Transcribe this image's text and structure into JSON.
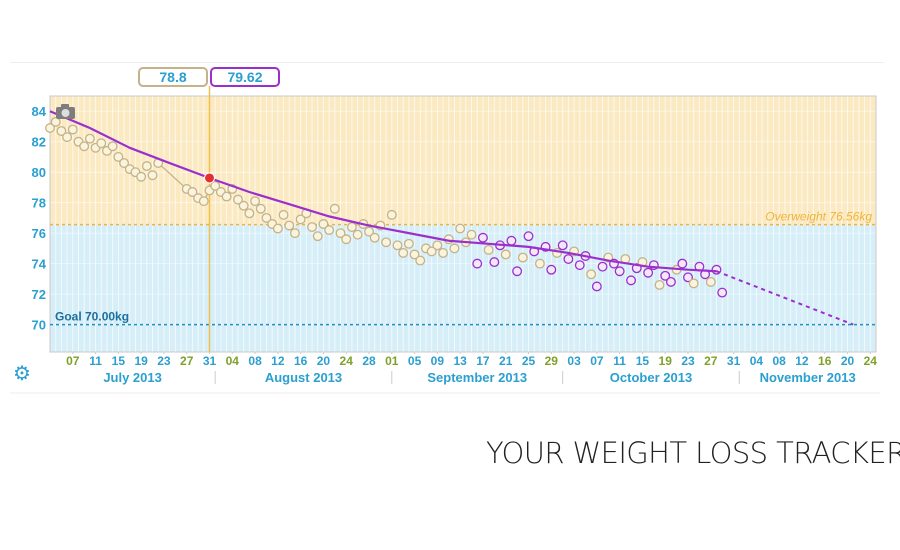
{
  "readouts": {
    "raw_weight": "78.8",
    "trend_weight": "79.62"
  },
  "tagline": "YOUR WEIGHT LOSS TRACKER",
  "colors": {
    "zone_over": "#fbeac1",
    "zone_normal": "#d6eef8",
    "trend": "#9b2fce",
    "raw": "#c3b28a",
    "goal_line": "#1f90c5",
    "overweight_line": "#f0b33c",
    "axis_text": "#2a9fd0",
    "weekend_day": "#7ea12a",
    "selection": "#f0c050",
    "current": "#e53030"
  },
  "chart_data": {
    "type": "line",
    "x_unit": "date",
    "xlim": [
      "2013-07-03",
      "2013-11-25"
    ],
    "ylim": [
      68.2,
      85
    ],
    "y_ticks": [
      "70",
      "72",
      "74",
      "76",
      "78",
      "80",
      "82",
      "84"
    ],
    "x_ticks": {
      "dates": [
        "2013-07-07",
        "2013-07-11",
        "2013-07-15",
        "2013-07-19",
        "2013-07-23",
        "2013-07-27",
        "2013-07-31",
        "2013-08-04",
        "2013-08-08",
        "2013-08-12",
        "2013-08-16",
        "2013-08-20",
        "2013-08-24",
        "2013-08-28",
        "2013-09-01",
        "2013-09-05",
        "2013-09-09",
        "2013-09-13",
        "2013-09-17",
        "2013-09-21",
        "2013-09-25",
        "2013-09-29",
        "2013-10-03",
        "2013-10-07",
        "2013-10-11",
        "2013-10-15",
        "2013-10-19",
        "2013-10-23",
        "2013-10-27",
        "2013-10-31",
        "2013-11-04",
        "2013-11-08",
        "2013-11-12",
        "2013-11-16",
        "2013-11-20",
        "2013-11-24"
      ],
      "labels": [
        "07",
        "11",
        "15",
        "19",
        "23",
        "27",
        "31",
        "04",
        "08",
        "12",
        "16",
        "20",
        "24",
        "28",
        "01",
        "05",
        "09",
        "13",
        "17",
        "21",
        "25",
        "29",
        "03",
        "07",
        "11",
        "15",
        "19",
        "23",
        "27",
        "31",
        "04",
        "08",
        "12",
        "16",
        "20",
        "24"
      ],
      "weekend": [
        true,
        false,
        false,
        false,
        false,
        true,
        false,
        true,
        false,
        false,
        false,
        false,
        true,
        false,
        true,
        false,
        false,
        false,
        false,
        false,
        false,
        true,
        false,
        false,
        false,
        false,
        true,
        false,
        true,
        false,
        false,
        false,
        false,
        true,
        false,
        true
      ]
    },
    "months": [
      "July 2013",
      "August 2013",
      "September 2013",
      "October 2013",
      "November 2013"
    ],
    "goal": {
      "value": 70.0,
      "label": "Goal 70.00kg"
    },
    "overweight": {
      "value": 76.56,
      "label": "Overweight 76.56kg"
    },
    "selected_date": "2013-07-31",
    "trend": {
      "name": "trend",
      "points": [
        [
          "2013-07-03",
          84.0
        ],
        [
          "2013-07-10",
          82.9
        ],
        [
          "2013-07-17",
          81.6
        ],
        [
          "2013-07-24",
          80.6
        ],
        [
          "2013-07-31",
          79.62
        ],
        [
          "2013-08-07",
          78.7
        ],
        [
          "2013-08-14",
          77.9
        ],
        [
          "2013-08-21",
          77.1
        ],
        [
          "2013-08-28",
          76.5
        ],
        [
          "2013-09-04",
          76.0
        ],
        [
          "2013-09-11",
          75.5
        ],
        [
          "2013-09-18",
          75.3
        ],
        [
          "2013-09-25",
          75.1
        ],
        [
          "2013-10-02",
          74.7
        ],
        [
          "2013-10-09",
          74.2
        ],
        [
          "2013-10-16",
          73.8
        ],
        [
          "2013-10-23",
          73.6
        ],
        [
          "2013-10-28",
          73.5
        ]
      ],
      "forecast": [
        [
          "2013-10-28",
          73.5
        ],
        [
          "2013-11-21",
          70.0
        ]
      ]
    },
    "raw": {
      "name": "weight",
      "points": [
        [
          "2013-07-03",
          82.9
        ],
        [
          "2013-07-04",
          83.3
        ],
        [
          "2013-07-05",
          82.7
        ],
        [
          "2013-07-06",
          82.3
        ],
        [
          "2013-07-07",
          82.8
        ],
        [
          "2013-07-08",
          82.0
        ],
        [
          "2013-07-09",
          81.7
        ],
        [
          "2013-07-10",
          82.2
        ],
        [
          "2013-07-11",
          81.6
        ],
        [
          "2013-07-12",
          81.9
        ],
        [
          "2013-07-13",
          81.4
        ],
        [
          "2013-07-14",
          81.7
        ],
        [
          "2013-07-15",
          81.0
        ],
        [
          "2013-07-16",
          80.6
        ],
        [
          "2013-07-17",
          80.2
        ],
        [
          "2013-07-18",
          80.0
        ],
        [
          "2013-07-19",
          79.7
        ],
        [
          "2013-07-20",
          80.4
        ],
        [
          "2013-07-21",
          79.8
        ],
        [
          "2013-07-22",
          80.6
        ],
        [
          "2013-07-27",
          78.9
        ],
        [
          "2013-07-28",
          78.7
        ],
        [
          "2013-07-29",
          78.3
        ],
        [
          "2013-07-30",
          78.1
        ],
        [
          "2013-07-31",
          78.8
        ],
        [
          "2013-08-01",
          79.1
        ],
        [
          "2013-08-02",
          78.7
        ],
        [
          "2013-08-03",
          78.4
        ],
        [
          "2013-08-04",
          78.9
        ],
        [
          "2013-08-05",
          78.2
        ],
        [
          "2013-08-06",
          77.8
        ],
        [
          "2013-08-07",
          77.3
        ],
        [
          "2013-08-08",
          78.1
        ],
        [
          "2013-08-09",
          77.6
        ],
        [
          "2013-08-10",
          77.0
        ],
        [
          "2013-08-11",
          76.6
        ],
        [
          "2013-08-12",
          76.3
        ],
        [
          "2013-08-13",
          77.2
        ],
        [
          "2013-08-14",
          76.5
        ],
        [
          "2013-08-15",
          76.0
        ],
        [
          "2013-08-16",
          76.9
        ],
        [
          "2013-08-17",
          77.3
        ],
        [
          "2013-08-18",
          76.4
        ],
        [
          "2013-08-19",
          75.8
        ],
        [
          "2013-08-20",
          76.6
        ],
        [
          "2013-08-21",
          76.2
        ],
        [
          "2013-08-22",
          77.6
        ],
        [
          "2013-08-23",
          76.0
        ],
        [
          "2013-08-24",
          75.6
        ],
        [
          "2013-08-25",
          76.4
        ],
        [
          "2013-08-26",
          75.9
        ],
        [
          "2013-08-27",
          76.6
        ],
        [
          "2013-08-28",
          76.1
        ],
        [
          "2013-08-29",
          75.7
        ],
        [
          "2013-08-30",
          76.5
        ],
        [
          "2013-08-31",
          75.4
        ],
        [
          "2013-09-01",
          77.2
        ],
        [
          "2013-09-02",
          75.2
        ],
        [
          "2013-09-03",
          74.7
        ],
        [
          "2013-09-04",
          75.3
        ],
        [
          "2013-09-05",
          74.6
        ],
        [
          "2013-09-06",
          74.2
        ],
        [
          "2013-09-07",
          75.0
        ],
        [
          "2013-09-08",
          74.8
        ],
        [
          "2013-09-09",
          75.2
        ],
        [
          "2013-09-10",
          74.7
        ],
        [
          "2013-09-11",
          75.6
        ],
        [
          "2013-09-12",
          75.0
        ],
        [
          "2013-09-13",
          76.3
        ],
        [
          "2013-09-14",
          75.4
        ],
        [
          "2013-09-15",
          75.9
        ],
        [
          "2013-09-16",
          74.0
        ],
        [
          "2013-09-17",
          75.7
        ],
        [
          "2013-09-18",
          74.9
        ],
        [
          "2013-09-19",
          74.1
        ],
        [
          "2013-09-20",
          75.2
        ],
        [
          "2013-09-21",
          74.6
        ],
        [
          "2013-09-22",
          75.5
        ],
        [
          "2013-09-23",
          73.5
        ],
        [
          "2013-09-24",
          74.4
        ],
        [
          "2013-09-25",
          75.8
        ],
        [
          "2013-09-26",
          74.8
        ],
        [
          "2013-09-27",
          74.0
        ],
        [
          "2013-09-28",
          75.1
        ],
        [
          "2013-09-29",
          73.6
        ],
        [
          "2013-09-30",
          74.7
        ],
        [
          "2013-10-01",
          75.2
        ],
        [
          "2013-10-02",
          74.3
        ],
        [
          "2013-10-03",
          74.8
        ],
        [
          "2013-10-04",
          73.9
        ],
        [
          "2013-10-05",
          74.5
        ],
        [
          "2013-10-06",
          73.3
        ],
        [
          "2013-10-07",
          72.5
        ],
        [
          "2013-10-08",
          73.8
        ],
        [
          "2013-10-09",
          74.4
        ],
        [
          "2013-10-10",
          74.0
        ],
        [
          "2013-10-11",
          73.5
        ],
        [
          "2013-10-12",
          74.3
        ],
        [
          "2013-10-13",
          72.9
        ],
        [
          "2013-10-14",
          73.7
        ],
        [
          "2013-10-15",
          74.1
        ],
        [
          "2013-10-16",
          73.4
        ],
        [
          "2013-10-17",
          73.9
        ],
        [
          "2013-10-18",
          72.6
        ],
        [
          "2013-10-19",
          73.2
        ],
        [
          "2013-10-20",
          72.8
        ],
        [
          "2013-10-21",
          73.6
        ],
        [
          "2013-10-22",
          74.0
        ],
        [
          "2013-10-23",
          73.1
        ],
        [
          "2013-10-24",
          72.7
        ],
        [
          "2013-10-25",
          73.8
        ],
        [
          "2013-10-26",
          73.3
        ],
        [
          "2013-10-27",
          72.8
        ],
        [
          "2013-10-28",
          73.6
        ],
        [
          "2013-10-29",
          72.1
        ]
      ]
    }
  }
}
